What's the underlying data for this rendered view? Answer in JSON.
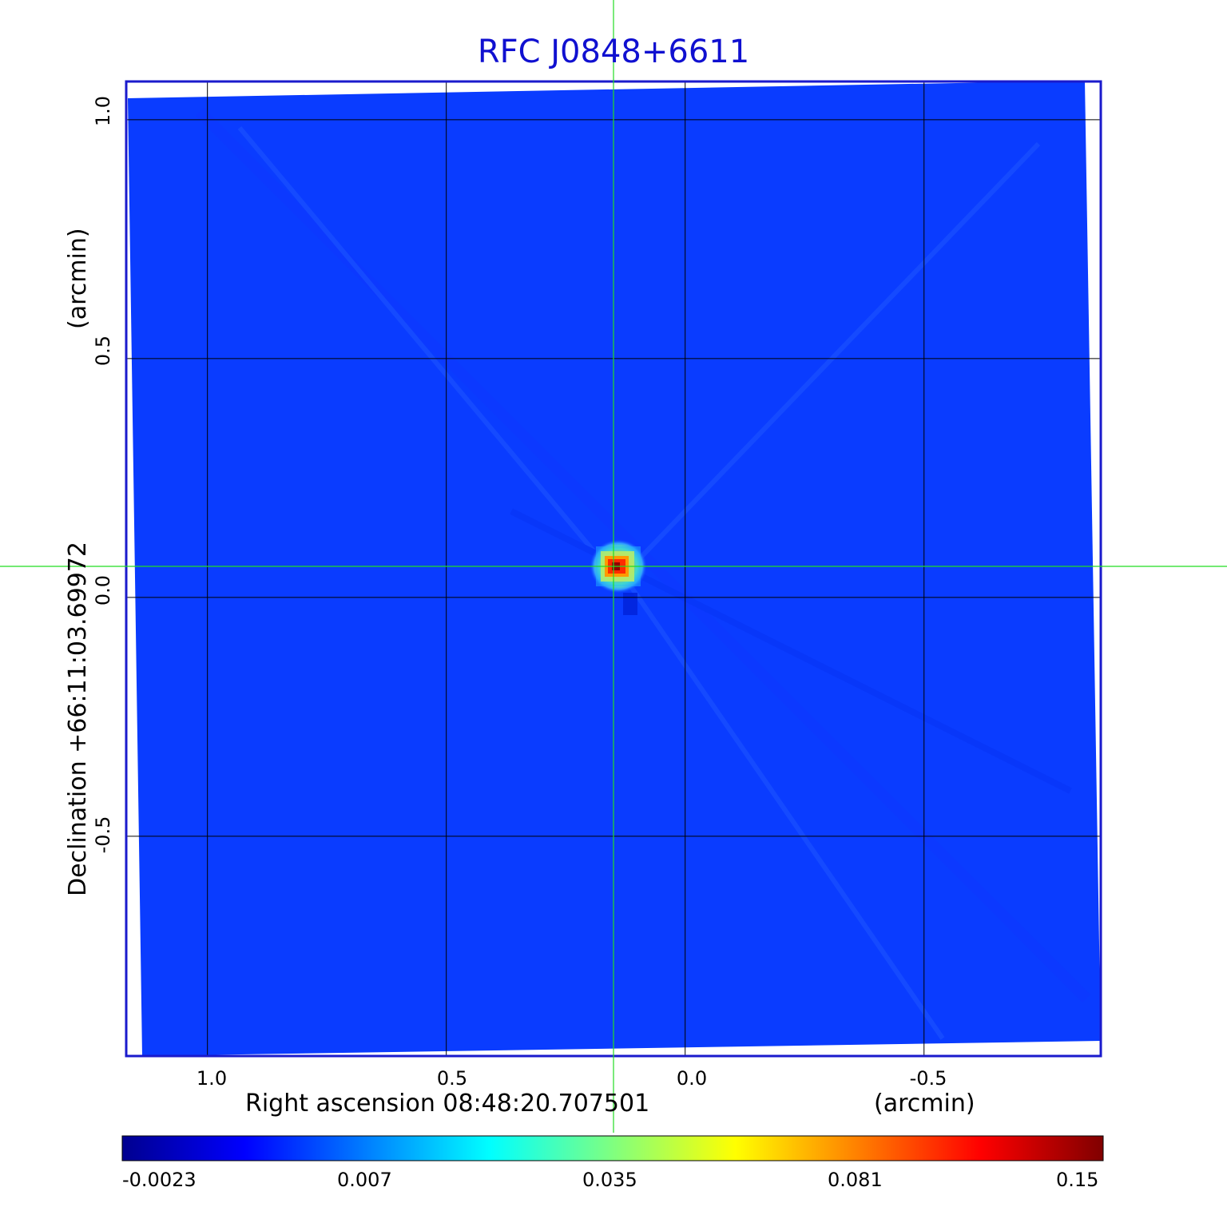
{
  "title": "RFC J0848+6611",
  "x_axis": {
    "label": "Right ascension  08:48:20.707501",
    "unit": "(arcmin)",
    "ticks": [
      "1.0",
      "0.5",
      "0.0",
      "-0.5"
    ]
  },
  "y_axis": {
    "label": "Declination  +66:11:03.69972",
    "unit": "(arcmin)",
    "ticks": [
      "1.0",
      "0.5",
      "0.0",
      "-0.5"
    ]
  },
  "colorbar": {
    "ticks": [
      "-0.0023",
      "0.007",
      "0.035",
      "0.081",
      "0.15"
    ],
    "colormap": "jet"
  },
  "colors": {
    "title": "#1010d0",
    "frame": "#1a1acc",
    "background_field": "#0a3cff",
    "crosshair": "#22dd22",
    "grid": "#000000"
  },
  "chart_data": {
    "type": "heatmap",
    "title": "RFC J0848+6611",
    "xlabel": "Right ascension  08:48:20.707501",
    "ylabel": "Declination  +66:11:03.69972",
    "x_unit": "arcmin",
    "y_unit": "arcmin",
    "xlim": [
      1.17,
      -0.87
    ],
    "ylim": [
      -0.96,
      1.08
    ],
    "x_ticks": [
      1.0,
      0.5,
      0.0,
      -0.5
    ],
    "y_ticks": [
      1.0,
      0.5,
      0.0,
      -0.5
    ],
    "grid": true,
    "colorbar_range": [
      -0.0023,
      0.15
    ],
    "colorbar_ticks": [
      -0.0023,
      0.007,
      0.035,
      0.081,
      0.15
    ],
    "source": {
      "x": 0.15,
      "y": 0.06,
      "peak": 0.15
    },
    "crosshair": {
      "x": 0.15,
      "y": 0.065
    }
  }
}
